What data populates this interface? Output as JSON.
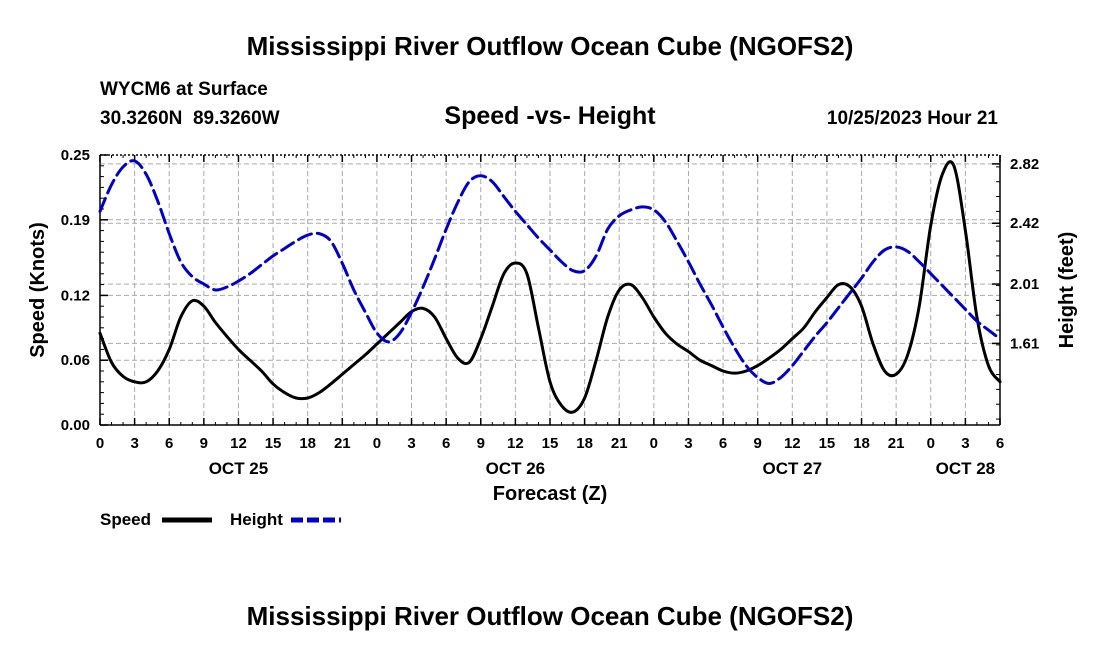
{
  "header": {
    "title": "Mississippi River Outflow Ocean Cube (NGOFS2)",
    "station": "WYCM6 at Surface",
    "coords": "30.3260N  89.3260W",
    "subtitle": "Speed -vs- Height",
    "datetime": "10/25/2023 Hour 21"
  },
  "footer": {
    "title": "Mississippi River Outflow Ocean Cube (NGOFS2)"
  },
  "colors": {
    "speed": "#000000",
    "height": "#0000cc",
    "grid": "#aaaaaa"
  },
  "chart_data": {
    "type": "line",
    "title": "Speed -vs- Height",
    "xlabel": "Forecast (Z)",
    "ylabel": "Speed (Knots)",
    "y2label": "Height (feet)",
    "x_range_hours": [
      0,
      78
    ],
    "x_origin": "OCT 25 00Z",
    "x_tick_labels": [
      "0",
      "3",
      "6",
      "9",
      "12",
      "15",
      "18",
      "21",
      "0",
      "3",
      "6",
      "9",
      "12",
      "15",
      "18",
      "21",
      "0",
      "3",
      "6",
      "9",
      "12",
      "15",
      "18",
      "21",
      "0",
      "3",
      "6"
    ],
    "day_labels": [
      {
        "label": "OCT 25",
        "hour": 12
      },
      {
        "label": "OCT 26",
        "hour": 36
      },
      {
        "label": "OCT 27",
        "hour": 60
      },
      {
        "label": "OCT 28",
        "hour": 75
      }
    ],
    "ylim": [
      0,
      0.25
    ],
    "y_ticks": [
      "0.00",
      "0.06",
      "0.12",
      "0.19",
      "0.25"
    ],
    "y2lim": [
      1.06,
      2.88
    ],
    "y2_ticks": [
      "1.61",
      "2.01",
      "2.42",
      "2.82"
    ],
    "grid": true,
    "legend": "bottom-left",
    "series": [
      {
        "name": "Speed",
        "axis": "left",
        "x": [
          0,
          1,
          2,
          3,
          4,
          5,
          6,
          7,
          8,
          9,
          10,
          11,
          12,
          13,
          14,
          15,
          16,
          17,
          18,
          19,
          20,
          21,
          22,
          23,
          24,
          25,
          26,
          27,
          28,
          29,
          30,
          31,
          32,
          33,
          34,
          35,
          36,
          37,
          38,
          39,
          40,
          41,
          42,
          43,
          44,
          45,
          46,
          47,
          48,
          49,
          50,
          51,
          52,
          53,
          54,
          55,
          56,
          57,
          58,
          59,
          60,
          61,
          62,
          63,
          64,
          65,
          66,
          67,
          68,
          69,
          70,
          71,
          72,
          73,
          74,
          75,
          76,
          77,
          78
        ],
        "values": [
          0.085,
          0.058,
          0.045,
          0.04,
          0.04,
          0.05,
          0.07,
          0.1,
          0.115,
          0.11,
          0.095,
          0.082,
          0.07,
          0.06,
          0.05,
          0.038,
          0.03,
          0.025,
          0.025,
          0.03,
          0.038,
          0.047,
          0.056,
          0.065,
          0.075,
          0.085,
          0.095,
          0.105,
          0.108,
          0.1,
          0.08,
          0.062,
          0.058,
          0.08,
          0.11,
          0.14,
          0.15,
          0.14,
          0.09,
          0.04,
          0.018,
          0.012,
          0.025,
          0.06,
          0.1,
          0.125,
          0.13,
          0.118,
          0.1,
          0.085,
          0.075,
          0.068,
          0.06,
          0.055,
          0.05,
          0.048,
          0.05,
          0.055,
          0.062,
          0.07,
          0.08,
          0.09,
          0.105,
          0.118,
          0.13,
          0.128,
          0.11,
          0.075,
          0.05,
          0.047,
          0.065,
          0.11,
          0.185,
          0.232,
          0.24,
          0.18,
          0.1,
          0.055,
          0.04
        ]
      },
      {
        "name": "Height",
        "axis": "right",
        "x": [
          0,
          1,
          2,
          3,
          4,
          5,
          6,
          7,
          8,
          9,
          10,
          11,
          12,
          13,
          14,
          15,
          16,
          17,
          18,
          19,
          20,
          21,
          22,
          23,
          24,
          25,
          26,
          27,
          28,
          29,
          30,
          31,
          32,
          33,
          34,
          35,
          36,
          37,
          38,
          39,
          40,
          41,
          42,
          43,
          44,
          45,
          46,
          47,
          48,
          49,
          50,
          51,
          52,
          53,
          54,
          55,
          56,
          57,
          58,
          59,
          60,
          61,
          62,
          63,
          64,
          65,
          66,
          67,
          68,
          69,
          70,
          71,
          72,
          73,
          74,
          75,
          76,
          77,
          78
        ],
        "values": [
          2.5,
          2.68,
          2.8,
          2.84,
          2.75,
          2.57,
          2.35,
          2.16,
          2.06,
          2.01,
          1.97,
          1.99,
          2.03,
          2.08,
          2.14,
          2.2,
          2.25,
          2.3,
          2.34,
          2.35,
          2.3,
          2.15,
          1.97,
          1.82,
          1.68,
          1.62,
          1.68,
          1.82,
          1.99,
          2.18,
          2.38,
          2.56,
          2.7,
          2.74,
          2.7,
          2.6,
          2.5,
          2.41,
          2.32,
          2.24,
          2.16,
          2.1,
          2.1,
          2.2,
          2.38,
          2.47,
          2.51,
          2.53,
          2.51,
          2.43,
          2.3,
          2.16,
          2.01,
          1.87,
          1.72,
          1.58,
          1.46,
          1.38,
          1.34,
          1.38,
          1.46,
          1.56,
          1.66,
          1.75,
          1.85,
          1.95,
          2.05,
          2.16,
          2.24,
          2.26,
          2.23,
          2.16,
          2.08,
          2.0,
          1.92,
          1.84,
          1.76,
          1.7,
          1.64
        ]
      }
    ]
  }
}
